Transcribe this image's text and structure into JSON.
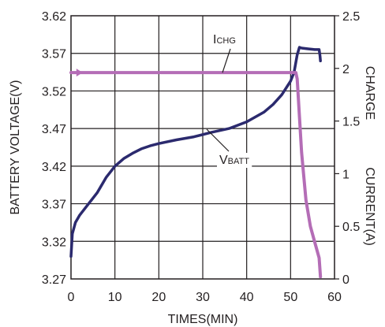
{
  "chart_data": {
    "type": "line",
    "x": {
      "label": "TIMES(MIN)",
      "range": [
        0,
        60
      ],
      "ticks": [
        "0",
        "10",
        "20",
        "30",
        "40",
        "50",
        "60"
      ]
    },
    "y_left": {
      "label": "BATTERY VOLTAGE(V)",
      "range": [
        3.27,
        3.62
      ],
      "ticks": [
        "3.27",
        "3.32",
        "3.37",
        "3.42",
        "3.47",
        "3.52",
        "3.57",
        "3.62"
      ]
    },
    "y_right": {
      "label_line1": "CHARGE",
      "label_line2": "CURRENT(A)",
      "range": [
        0,
        2.5
      ],
      "ticks": [
        "0",
        "0.5",
        "1",
        "1.5",
        "2",
        "2.5"
      ]
    },
    "grid": true,
    "series": [
      {
        "name": "VBATT",
        "label_main": "V",
        "label_sub": "BATT",
        "axis": "left",
        "color": "#2b2a6e",
        "points": [
          [
            0,
            3.3
          ],
          [
            0.3,
            3.33
          ],
          [
            1,
            3.345
          ],
          [
            2,
            3.355
          ],
          [
            4,
            3.37
          ],
          [
            6,
            3.385
          ],
          [
            8,
            3.405
          ],
          [
            10,
            3.42
          ],
          [
            12,
            3.43
          ],
          [
            14,
            3.437
          ],
          [
            16,
            3.443
          ],
          [
            18,
            3.447
          ],
          [
            20,
            3.45
          ],
          [
            24,
            3.455
          ],
          [
            28,
            3.459
          ],
          [
            32,
            3.465
          ],
          [
            36,
            3.47
          ],
          [
            40,
            3.479
          ],
          [
            44,
            3.492
          ],
          [
            46,
            3.502
          ],
          [
            48,
            3.515
          ],
          [
            50,
            3.533
          ],
          [
            50.8,
            3.545
          ],
          [
            51.5,
            3.568
          ],
          [
            52,
            3.578
          ],
          [
            52.5,
            3.577
          ],
          [
            54,
            3.576
          ],
          [
            55.5,
            3.575
          ],
          [
            56.5,
            3.575
          ],
          [
            56.7,
            3.567
          ],
          [
            56.8,
            3.56
          ]
        ]
      },
      {
        "name": "ICHG",
        "label_main": "I",
        "label_sub": "CHG",
        "axis": "right",
        "color": "#b46db6",
        "points": [
          [
            0,
            1.96
          ],
          [
            51.2,
            1.96
          ],
          [
            51.5,
            1.9
          ],
          [
            52.5,
            1.2
          ],
          [
            53.5,
            0.75
          ],
          [
            54.5,
            0.5
          ],
          [
            55.5,
            0.35
          ],
          [
            56.5,
            0.2
          ],
          [
            56.8,
            0.02
          ]
        ]
      }
    ]
  }
}
